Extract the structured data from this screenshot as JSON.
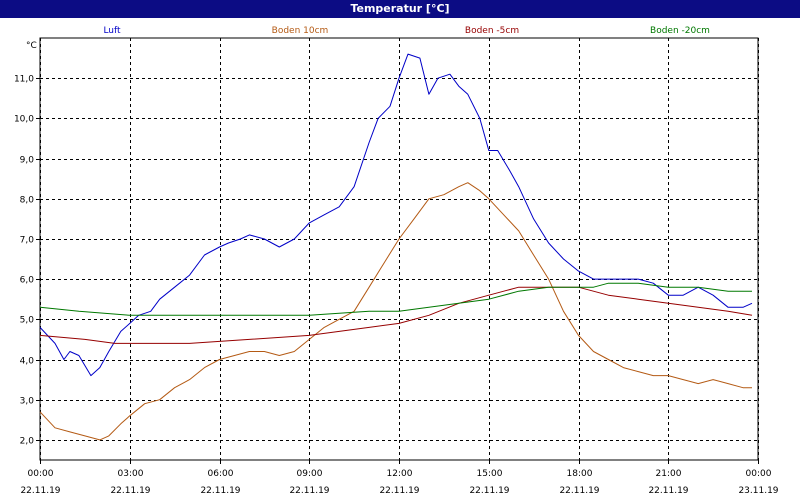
{
  "window": {
    "title": "Temperatur [°C]"
  },
  "chart_data": {
    "type": "line",
    "title": "Temperatur [°C]",
    "ylabel": "°C",
    "xlabel": "",
    "ylim": [
      1.5,
      12.0
    ],
    "yticks": [
      2.0,
      3.0,
      4.0,
      5.0,
      6.0,
      7.0,
      8.0,
      9.0,
      10.0,
      11.0
    ],
    "ytick_labels": [
      "2,0",
      "3,0",
      "4,0",
      "5,0",
      "6,0",
      "7,0",
      "8,0",
      "9,0",
      "10,0",
      "11,0"
    ],
    "xlim": [
      0,
      24
    ],
    "xticks": [
      {
        "time": "00:00",
        "date": "22.11.19"
      },
      {
        "time": "03:00",
        "date": "22.11.19"
      },
      {
        "time": "06:00",
        "date": "22.11.19"
      },
      {
        "time": "09:00",
        "date": "22.11.19"
      },
      {
        "time": "12:00",
        "date": "22.11.19"
      },
      {
        "time": "15:00",
        "date": "22.11.19"
      },
      {
        "time": "18:00",
        "date": "22.11.19"
      },
      {
        "time": "21:00",
        "date": "22.11.19"
      },
      {
        "time": "00:00",
        "date": "23.11.19"
      }
    ],
    "grid": true,
    "legend_position": "top",
    "series": [
      {
        "name": "Luft",
        "color": "#0000c8",
        "x": [
          0,
          0.5,
          0.8,
          1.0,
          1.3,
          1.7,
          2.0,
          2.3,
          2.7,
          3.0,
          3.3,
          3.7,
          4.0,
          4.5,
          5.0,
          5.5,
          6.0,
          6.3,
          6.7,
          7.0,
          7.5,
          8.0,
          8.5,
          9.0,
          9.5,
          10.0,
          10.5,
          11.0,
          11.3,
          11.7,
          12.0,
          12.3,
          12.7,
          13.0,
          13.3,
          13.7,
          14.0,
          14.3,
          14.7,
          15.0,
          15.3,
          15.7,
          16.0,
          16.5,
          17.0,
          17.5,
          18.0,
          18.5,
          19.0,
          19.5,
          20.0,
          20.5,
          21.0,
          21.5,
          22.0,
          22.5,
          23.0,
          23.5,
          23.8
        ],
        "y": [
          4.8,
          4.4,
          4.0,
          4.2,
          4.1,
          3.6,
          3.8,
          4.2,
          4.7,
          4.9,
          5.1,
          5.2,
          5.5,
          5.8,
          6.1,
          6.6,
          6.8,
          6.9,
          7.0,
          7.1,
          7.0,
          6.8,
          7.0,
          7.4,
          7.6,
          7.8,
          8.3,
          9.4,
          10.0,
          10.3,
          11.0,
          11.6,
          11.5,
          10.6,
          11.0,
          11.1,
          10.8,
          10.6,
          10.0,
          9.2,
          9.2,
          8.7,
          8.3,
          7.5,
          6.9,
          6.5,
          6.2,
          6.0,
          6.0,
          6.0,
          6.0,
          5.9,
          5.6,
          5.6,
          5.8,
          5.6,
          5.3,
          5.3,
          5.4
        ]
      },
      {
        "name": "Boden 10cm",
        "color": "#b45a14",
        "x": [
          0,
          0.5,
          1.0,
          1.5,
          2.0,
          2.3,
          2.7,
          3.0,
          3.5,
          4.0,
          4.5,
          5.0,
          5.5,
          6.0,
          6.5,
          7.0,
          7.5,
          8.0,
          8.5,
          9.0,
          9.5,
          10.0,
          10.5,
          11.0,
          11.5,
          12.0,
          12.5,
          13.0,
          13.5,
          14.0,
          14.3,
          14.7,
          15.0,
          15.5,
          16.0,
          16.5,
          17.0,
          17.5,
          18.0,
          18.5,
          19.0,
          19.5,
          20.0,
          20.5,
          21.0,
          21.5,
          22.0,
          22.5,
          23.0,
          23.5,
          23.8
        ],
        "y": [
          2.7,
          2.3,
          2.2,
          2.1,
          2.0,
          2.1,
          2.4,
          2.6,
          2.9,
          3.0,
          3.3,
          3.5,
          3.8,
          4.0,
          4.1,
          4.2,
          4.2,
          4.1,
          4.2,
          4.5,
          4.8,
          5.0,
          5.2,
          5.8,
          6.4,
          7.0,
          7.5,
          8.0,
          8.1,
          8.3,
          8.4,
          8.2,
          8.0,
          7.6,
          7.2,
          6.6,
          6.0,
          5.2,
          4.6,
          4.2,
          4.0,
          3.8,
          3.7,
          3.6,
          3.6,
          3.5,
          3.4,
          3.5,
          3.4,
          3.3,
          3.3
        ]
      },
      {
        "name": "Boden -5cm",
        "color": "#960000",
        "x": [
          0,
          1.5,
          2.5,
          5.0,
          7.0,
          9.0,
          10.0,
          11.0,
          12.0,
          13.0,
          14.0,
          15.0,
          15.5,
          16.0,
          17.0,
          18.0,
          19.0,
          20.0,
          21.0,
          22.0,
          23.0,
          23.8
        ],
        "y": [
          4.6,
          4.5,
          4.4,
          4.4,
          4.5,
          4.6,
          4.7,
          4.8,
          4.9,
          5.1,
          5.4,
          5.6,
          5.7,
          5.8,
          5.8,
          5.8,
          5.6,
          5.5,
          5.4,
          5.3,
          5.2,
          5.1
        ]
      },
      {
        "name": "Boden -20cm",
        "color": "#007800",
        "x": [
          0,
          1.3,
          3.0,
          5.0,
          7.0,
          9.0,
          11.0,
          12.0,
          13.0,
          14.0,
          15.0,
          16.0,
          17.0,
          18.0,
          18.5,
          19.0,
          20.0,
          21.0,
          22.0,
          23.0,
          23.8
        ],
        "y": [
          5.3,
          5.2,
          5.1,
          5.1,
          5.1,
          5.1,
          5.2,
          5.2,
          5.3,
          5.4,
          5.5,
          5.7,
          5.8,
          5.8,
          5.8,
          5.9,
          5.9,
          5.8,
          5.8,
          5.7,
          5.7
        ]
      }
    ]
  }
}
